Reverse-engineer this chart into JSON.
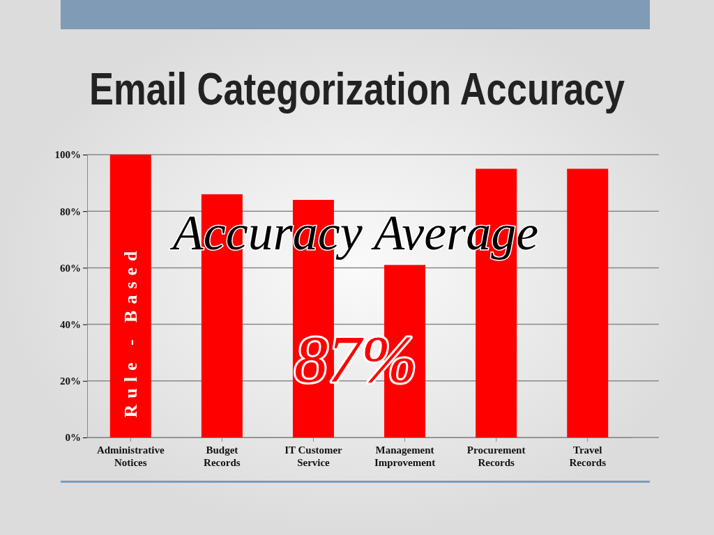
{
  "chart_data": {
    "type": "bar",
    "title": "Email Categorization Accuracy",
    "categories": [
      "Administrative Notices",
      "Budget Records",
      "IT Customer Service",
      "Management Improvement",
      "Procurement Records",
      "Travel Records"
    ],
    "values": [
      100,
      86,
      84,
      61,
      95,
      95
    ],
    "color": "#ff0000",
    "ylim": [
      0,
      100
    ],
    "yticks": [
      {
        "value": 0,
        "label": "0%"
      },
      {
        "value": 20,
        "label": "20%"
      },
      {
        "value": 40,
        "label": "40%"
      },
      {
        "value": 60,
        "label": "60%"
      },
      {
        "value": 80,
        "label": "80%"
      },
      {
        "value": 100,
        "label": "100%"
      }
    ],
    "grid": "y",
    "annotations": [
      "Rule - Based",
      "Accuracy Average",
      "87%"
    ]
  }
}
